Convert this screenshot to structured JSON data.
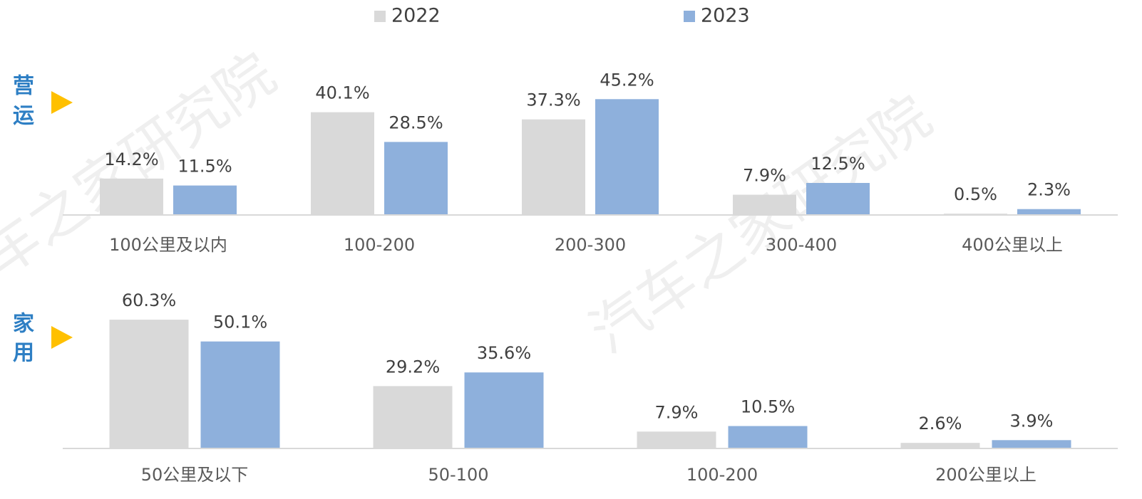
{
  "watermark": "汽车之家研究院",
  "chart_data": [
    {
      "type": "bar",
      "label": [
        "营",
        "运"
      ],
      "categories": [
        "100公里及以内",
        "100-200",
        "200-300",
        "300-400",
        "400公里以上"
      ],
      "series": [
        {
          "name": "2022",
          "color": "#d9d9d9",
          "values": [
            14.2,
            40.1,
            37.3,
            7.9,
            0.5
          ],
          "value_labels": [
            "14.2%",
            "40.1%",
            "37.3%",
            "7.9%",
            "0.5%"
          ]
        },
        {
          "name": "2023",
          "color": "#8eb0dc",
          "values": [
            11.5,
            28.5,
            45.2,
            12.5,
            2.3
          ],
          "value_labels": [
            "11.5%",
            "28.5%",
            "45.2%",
            "12.5%",
            "2.3%"
          ]
        }
      ],
      "ylim": [
        0,
        50
      ]
    },
    {
      "type": "bar",
      "label": [
        "家",
        "用"
      ],
      "categories": [
        "50公里及以下",
        "50-100",
        "100-200",
        "200公里以上"
      ],
      "series": [
        {
          "name": "2022",
          "color": "#d9d9d9",
          "values": [
            60.3,
            29.2,
            7.9,
            2.6
          ],
          "value_labels": [
            "60.3%",
            "29.2%",
            "7.9%",
            "2.6%"
          ]
        },
        {
          "name": "2023",
          "color": "#8eb0dc",
          "values": [
            50.1,
            35.6,
            10.5,
            3.9
          ],
          "value_labels": [
            "50.1%",
            "35.6%",
            "10.5%",
            "3.9%"
          ]
        }
      ],
      "ylim": [
        0,
        70
      ]
    }
  ]
}
